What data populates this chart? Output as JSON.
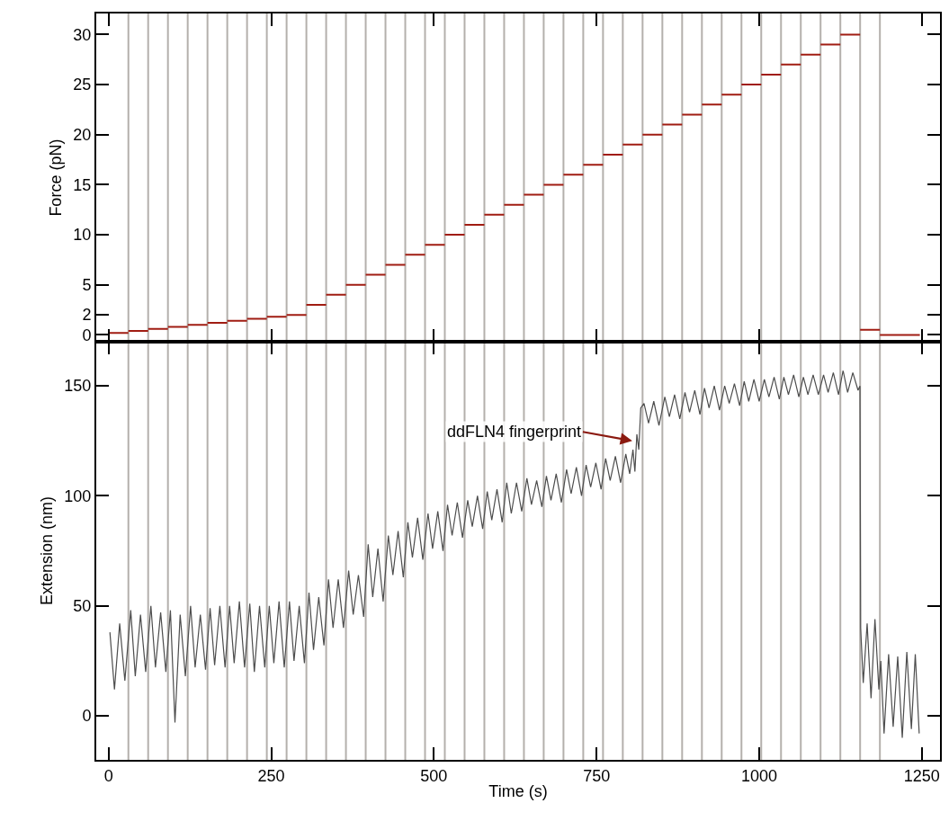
{
  "chart_data": [
    {
      "type": "step",
      "ylabel": "Force (pN)",
      "xlim": [
        -19,
        1278
      ],
      "xticks": [
        0,
        250,
        500,
        750,
        1000,
        1250
      ],
      "ylim": [
        -0.7,
        32.1
      ],
      "yticks": [
        0,
        2,
        5,
        10,
        15,
        20,
        25,
        30
      ],
      "tick_labels": "y",
      "grid": false,
      "x": [
        0,
        30.4,
        60.8,
        91.2,
        121.6,
        152,
        182.4,
        212.8,
        243.2,
        273.6,
        304,
        334.4,
        364.8,
        395.2,
        425.6,
        456,
        486.4,
        516.8,
        547.2,
        577.6,
        608,
        638.4,
        668.8,
        699.2,
        729.6,
        760,
        790.4,
        820.8,
        851.2,
        881.6,
        912,
        942.4,
        972.8,
        1003.2,
        1033.6,
        1064,
        1094.4,
        1124.8,
        1155.2,
        1185.6,
        1247
      ],
      "series": [
        {
          "color": "#a01c12",
          "values": [
            0.2,
            0.4,
            0.6,
            0.8,
            1.0,
            1.2,
            1.4,
            1.6,
            1.8,
            2,
            3,
            4,
            5,
            6,
            7,
            8,
            9,
            10,
            11,
            12,
            13,
            14,
            15,
            16,
            17,
            18,
            19,
            20,
            21,
            22,
            23,
            24,
            25,
            26,
            27,
            28,
            29,
            30,
            0.5,
            0,
            0
          ]
        }
      ],
      "ref_lines": [
        {
          "axis": "x",
          "value": 30.4,
          "color": "#b4b0ac"
        },
        {
          "axis": "x",
          "value": 60.8,
          "color": "#b4b0ac"
        },
        {
          "axis": "x",
          "value": 91.2,
          "color": "#b4b0ac"
        },
        {
          "axis": "x",
          "value": 121.6,
          "color": "#b4b0ac"
        },
        {
          "axis": "x",
          "value": 152,
          "color": "#b4b0ac"
        },
        {
          "axis": "x",
          "value": 182.4,
          "color": "#b4b0ac"
        },
        {
          "axis": "x",
          "value": 212.8,
          "color": "#b4b0ac"
        },
        {
          "axis": "x",
          "value": 243.2,
          "color": "#b4b0ac"
        },
        {
          "axis": "x",
          "value": 273.6,
          "color": "#b4b0ac"
        },
        {
          "axis": "x",
          "value": 304,
          "color": "#b4b0ac"
        },
        {
          "axis": "x",
          "value": 334.4,
          "color": "#b4b0ac"
        },
        {
          "axis": "x",
          "value": 364.8,
          "color": "#b4b0ac"
        },
        {
          "axis": "x",
          "value": 395.2,
          "color": "#b4b0ac"
        },
        {
          "axis": "x",
          "value": 425.6,
          "color": "#b4b0ac"
        },
        {
          "axis": "x",
          "value": 456,
          "color": "#b4b0ac"
        },
        {
          "axis": "x",
          "value": 486.4,
          "color": "#b4b0ac"
        },
        {
          "axis": "x",
          "value": 516.8,
          "color": "#b4b0ac"
        },
        {
          "axis": "x",
          "value": 547.2,
          "color": "#b4b0ac"
        },
        {
          "axis": "x",
          "value": 577.6,
          "color": "#b4b0ac"
        },
        {
          "axis": "x",
          "value": 608,
          "color": "#b4b0ac"
        },
        {
          "axis": "x",
          "value": 638.4,
          "color": "#b4b0ac"
        },
        {
          "axis": "x",
          "value": 668.8,
          "color": "#b4b0ac"
        },
        {
          "axis": "x",
          "value": 699.2,
          "color": "#b4b0ac"
        },
        {
          "axis": "x",
          "value": 729.6,
          "color": "#b4b0ac"
        },
        {
          "axis": "x",
          "value": 760,
          "color": "#b4b0ac"
        },
        {
          "axis": "x",
          "value": 790.4,
          "color": "#b4b0ac"
        },
        {
          "axis": "x",
          "value": 820.8,
          "color": "#b4b0ac"
        },
        {
          "axis": "x",
          "value": 851.2,
          "color": "#b4b0ac"
        },
        {
          "axis": "x",
          "value": 881.6,
          "color": "#b4b0ac"
        },
        {
          "axis": "x",
          "value": 912,
          "color": "#b4b0ac"
        },
        {
          "axis": "x",
          "value": 942.4,
          "color": "#b4b0ac"
        },
        {
          "axis": "x",
          "value": 972.8,
          "color": "#b4b0ac"
        },
        {
          "axis": "x",
          "value": 1003.2,
          "color": "#b4b0ac"
        },
        {
          "axis": "x",
          "value": 1033.6,
          "color": "#b4b0ac"
        },
        {
          "axis": "x",
          "value": 1064,
          "color": "#b4b0ac"
        },
        {
          "axis": "x",
          "value": 1094.4,
          "color": "#b4b0ac"
        },
        {
          "axis": "x",
          "value": 1124.8,
          "color": "#b4b0ac"
        },
        {
          "axis": "x",
          "value": 1155.2,
          "color": "#b4b0ac"
        },
        {
          "axis": "x",
          "value": 1185.6,
          "color": "#b4b0ac"
        }
      ]
    },
    {
      "type": "line",
      "xlabel": "Time (s)",
      "ylabel": "Extension (nm)",
      "xlim": [
        -19,
        1278
      ],
      "xticks": [
        0,
        250,
        500,
        750,
        1000,
        1250
      ],
      "ylim": [
        -20,
        170
      ],
      "yticks": [
        0,
        50,
        100,
        150
      ],
      "grid": false,
      "x": [
        2,
        9,
        17,
        25,
        34,
        41,
        49,
        57,
        65,
        72,
        80,
        88,
        95,
        102,
        110,
        118,
        126,
        133,
        141,
        149,
        156,
        163,
        171,
        179,
        186,
        193,
        201,
        209,
        217,
        224,
        232,
        240,
        247,
        254,
        262,
        270,
        278,
        285,
        293,
        301,
        308,
        315,
        323,
        331,
        338,
        345,
        353,
        361,
        369,
        376,
        384,
        392,
        399,
        406,
        414,
        422,
        430,
        437,
        445,
        453,
        460,
        467,
        475,
        483,
        491,
        498,
        506,
        514,
        521,
        528,
        536,
        544,
        552,
        559,
        567,
        575,
        582,
        589,
        597,
        605,
        612,
        619,
        627,
        635,
        643,
        650,
        658,
        666,
        673,
        680,
        688,
        696,
        704,
        711,
        719,
        727,
        734,
        741,
        749,
        757,
        764,
        771,
        779,
        787,
        795,
        801,
        806,
        809,
        812,
        815,
        818,
        823,
        830,
        838,
        846,
        855,
        862,
        870,
        878,
        886,
        893,
        901,
        909,
        916,
        923,
        931,
        939,
        947,
        954,
        962,
        970,
        977,
        984,
        992,
        1000,
        1008,
        1015,
        1023,
        1031,
        1038,
        1045,
        1053,
        1061,
        1068,
        1075,
        1083,
        1091,
        1099,
        1106,
        1114,
        1122,
        1129,
        1136,
        1144,
        1152,
        1155,
        1156,
        1160,
        1166,
        1172,
        1178,
        1184,
        1187,
        1192,
        1199,
        1206,
        1213,
        1220,
        1227,
        1234,
        1240,
        1246
      ],
      "series": [
        {
          "color": "#4d4d4d",
          "values": [
            38,
            12,
            42,
            16,
            48,
            18,
            46,
            20,
            50,
            22,
            47,
            20,
            48,
            -3,
            46,
            18,
            50,
            22,
            46,
            21,
            49,
            23,
            50,
            22,
            50,
            24,
            52,
            22,
            51,
            20,
            50,
            22,
            50,
            24,
            52,
            22,
            52,
            25,
            50,
            24,
            56,
            30,
            54,
            32,
            62,
            40,
            62,
            40,
            66,
            46,
            64,
            45,
            78,
            54,
            76,
            52,
            82,
            64,
            84,
            63,
            88,
            72,
            90,
            71,
            92,
            76,
            93,
            75,
            96,
            82,
            97,
            81,
            98,
            86,
            100,
            85,
            102,
            89,
            103,
            88,
            106,
            92,
            106,
            93,
            108,
            96,
            107,
            95,
            109,
            98,
            110,
            97,
            112,
            101,
            113,
            100,
            114,
            104,
            115,
            103,
            117,
            107,
            118,
            106,
            119,
            110,
            121,
            111,
            128,
            121,
            140,
            142,
            133,
            143,
            132,
            145,
            136,
            146,
            135,
            147,
            138,
            148,
            137,
            149,
            140,
            150,
            139,
            150,
            142,
            151,
            141,
            152,
            143,
            153,
            143,
            153,
            145,
            154,
            144,
            154,
            146,
            155,
            145,
            154,
            146,
            155,
            146,
            155,
            147,
            156,
            146,
            157,
            147,
            156,
            148,
            150,
            40,
            15,
            42,
            8,
            44,
            12,
            25,
            -8,
            28,
            -5,
            27,
            -10,
            29,
            -6,
            28,
            -8
          ]
        }
      ],
      "annotations": [
        {
          "text": "ddFLN4 fingerprint",
          "x": 805,
          "y": 125
        }
      ],
      "ref_lines": [
        {
          "axis": "x",
          "value": 30.4,
          "color": "#b4b0ac"
        },
        {
          "axis": "x",
          "value": 60.8,
          "color": "#b4b0ac"
        },
        {
          "axis": "x",
          "value": 91.2,
          "color": "#b4b0ac"
        },
        {
          "axis": "x",
          "value": 121.6,
          "color": "#b4b0ac"
        },
        {
          "axis": "x",
          "value": 152,
          "color": "#b4b0ac"
        },
        {
          "axis": "x",
          "value": 182.4,
          "color": "#b4b0ac"
        },
        {
          "axis": "x",
          "value": 212.8,
          "color": "#b4b0ac"
        },
        {
          "axis": "x",
          "value": 243.2,
          "color": "#b4b0ac"
        },
        {
          "axis": "x",
          "value": 273.6,
          "color": "#b4b0ac"
        },
        {
          "axis": "x",
          "value": 304,
          "color": "#b4b0ac"
        },
        {
          "axis": "x",
          "value": 334.4,
          "color": "#b4b0ac"
        },
        {
          "axis": "x",
          "value": 364.8,
          "color": "#b4b0ac"
        },
        {
          "axis": "x",
          "value": 395.2,
          "color": "#b4b0ac"
        },
        {
          "axis": "x",
          "value": 425.6,
          "color": "#b4b0ac"
        },
        {
          "axis": "x",
          "value": 456,
          "color": "#b4b0ac"
        },
        {
          "axis": "x",
          "value": 486.4,
          "color": "#b4b0ac"
        },
        {
          "axis": "x",
          "value": 516.8,
          "color": "#b4b0ac"
        },
        {
          "axis": "x",
          "value": 547.2,
          "color": "#b4b0ac"
        },
        {
          "axis": "x",
          "value": 577.6,
          "color": "#b4b0ac"
        },
        {
          "axis": "x",
          "value": 608,
          "color": "#b4b0ac"
        },
        {
          "axis": "x",
          "value": 638.4,
          "color": "#b4b0ac"
        },
        {
          "axis": "x",
          "value": 668.8,
          "color": "#b4b0ac"
        },
        {
          "axis": "x",
          "value": 699.2,
          "color": "#b4b0ac"
        },
        {
          "axis": "x",
          "value": 729.6,
          "color": "#b4b0ac"
        },
        {
          "axis": "x",
          "value": 760,
          "color": "#b4b0ac"
        },
        {
          "axis": "x",
          "value": 790.4,
          "color": "#b4b0ac"
        },
        {
          "axis": "x",
          "value": 820.8,
          "color": "#b4b0ac"
        },
        {
          "axis": "x",
          "value": 851.2,
          "color": "#b4b0ac"
        },
        {
          "axis": "x",
          "value": 881.6,
          "color": "#b4b0ac"
        },
        {
          "axis": "x",
          "value": 912,
          "color": "#b4b0ac"
        },
        {
          "axis": "x",
          "value": 942.4,
          "color": "#b4b0ac"
        },
        {
          "axis": "x",
          "value": 972.8,
          "color": "#b4b0ac"
        },
        {
          "axis": "x",
          "value": 1003.2,
          "color": "#b4b0ac"
        },
        {
          "axis": "x",
          "value": 1033.6,
          "color": "#b4b0ac"
        },
        {
          "axis": "x",
          "value": 1064,
          "color": "#b4b0ac"
        },
        {
          "axis": "x",
          "value": 1094.4,
          "color": "#b4b0ac"
        },
        {
          "axis": "x",
          "value": 1124.8,
          "color": "#b4b0ac"
        },
        {
          "axis": "x",
          "value": 1155.2,
          "color": "#b4b0ac"
        },
        {
          "axis": "x",
          "value": 1185.6,
          "color": "#b4b0ac"
        }
      ]
    }
  ]
}
